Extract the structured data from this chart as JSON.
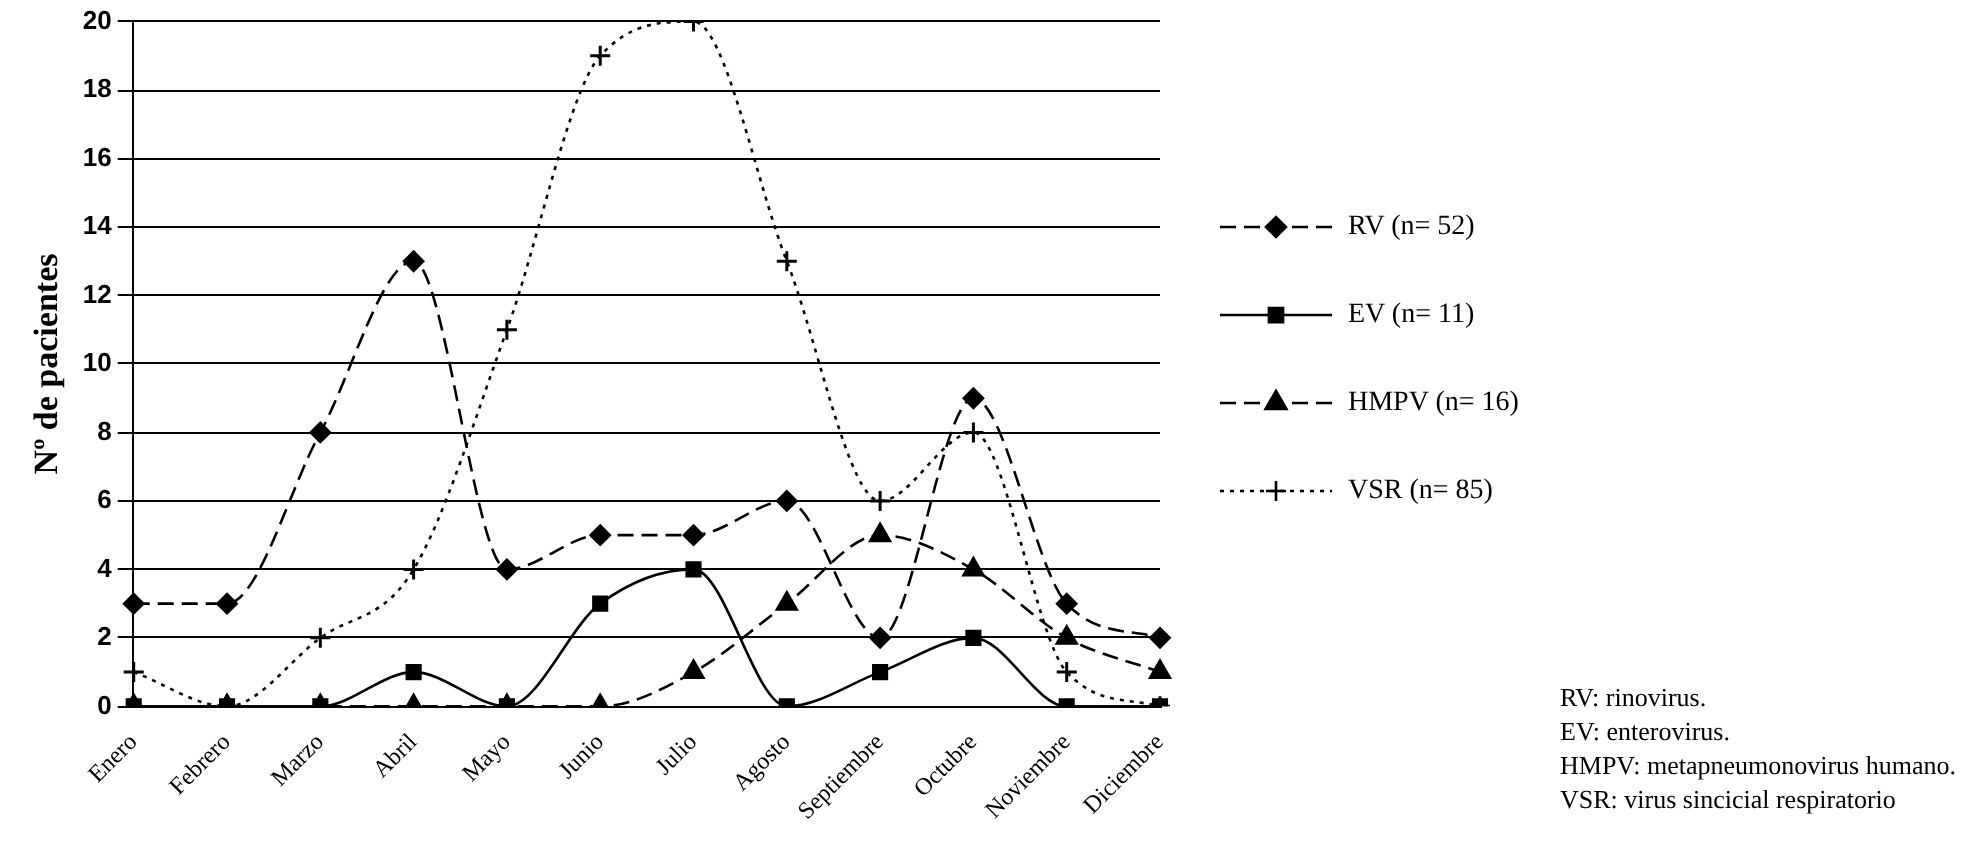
{
  "chart_data": {
    "type": "line",
    "ylabel": "Nº de pacientes",
    "categories": [
      "Enero",
      "Febrero",
      "Marzo",
      "Abril",
      "Mayo",
      "Junio",
      "Julio",
      "Agosto",
      "Septiembre",
      "Octubre",
      "Noviembre",
      "Diciembre"
    ],
    "series": [
      {
        "name": "RV (n= 52)",
        "color": "#000000",
        "marker": "diamond",
        "line_style": "dashed",
        "values": [
          3,
          3,
          8,
          13,
          4,
          5,
          5,
          6,
          2,
          9,
          3,
          2
        ]
      },
      {
        "name": "EV (n= 11)",
        "color": "#000000",
        "marker": "square",
        "line_style": "solid",
        "values": [
          0,
          0,
          0,
          1,
          0,
          3,
          4,
          0,
          1,
          2,
          0,
          0
        ]
      },
      {
        "name": "HMPV (n= 16)",
        "color": "#000000",
        "marker": "triangle",
        "line_style": "dashed",
        "values": [
          0,
          0,
          0,
          0,
          0,
          0,
          1,
          3,
          5,
          4,
          2,
          1
        ]
      },
      {
        "name": "VSR (n= 85)",
        "color": "#000000",
        "marker": "cross",
        "line_style": "dotted",
        "values": [
          1,
          0,
          2,
          4,
          11,
          19,
          20,
          13,
          6,
          8,
          1,
          0
        ]
      }
    ],
    "ylim": [
      0,
      20
    ],
    "yticks": [
      0,
      2,
      4,
      6,
      8,
      10,
      12,
      14,
      16,
      18,
      20
    ],
    "grid": "y",
    "legend": "right",
    "annotations": [
      "RV: rinovirus.",
      "EV: enterovirus.",
      "HMPV: metapneumonovirus humano.",
      "VSR: virus sincicial respiratorio"
    ]
  }
}
